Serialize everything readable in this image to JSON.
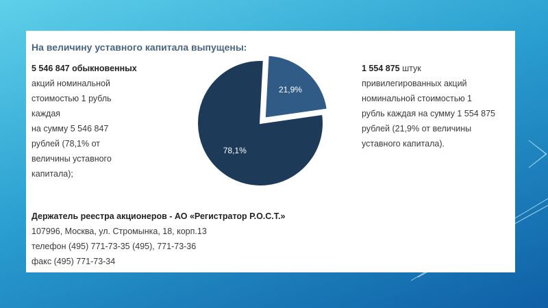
{
  "heading": "На величину уставного капитала выпущены:",
  "left": {
    "bold": "5 546 847 обыкновенных",
    "lines": [
      "акций номинальной",
      "стоимостью 1 рубль",
      "каждая",
      "на сумму 5 546 847",
      "рублей (78,1% от",
      "величины уставного",
      "капитала);"
    ]
  },
  "right": {
    "bold": "1 554 875",
    "rest": "штук",
    "lines": [
      "привилегированных акций",
      "номинальной стоимостью 1",
      "рубль каждая на сумму 1 554 875",
      "рублей (21,9% от величины",
      "уставного капитала)."
    ]
  },
  "footer": {
    "bold": "Держатель реестра акционеров - АО «Регистратор Р.О.С.Т.»",
    "lines": [
      "107996, Москва, ул. Стромынка, 18, корп.13",
      "телефон (495) 771-73-35 (495), 771-73-36",
      "факс (495) 771-73-34"
    ]
  },
  "chart_data": {
    "type": "pie",
    "values": [
      21.9,
      78.1
    ],
    "value_labels": [
      "21,9%",
      "78,1%"
    ],
    "colors": [
      "#2f5b86",
      "#1d3b58"
    ]
  }
}
